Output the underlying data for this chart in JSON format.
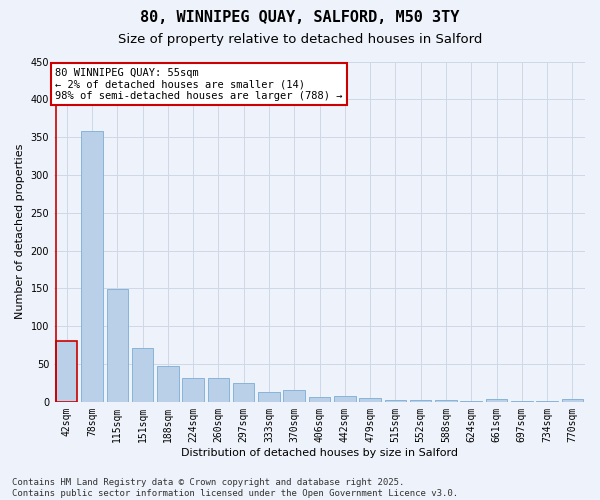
{
  "title1": "80, WINNIPEG QUAY, SALFORD, M50 3TY",
  "title2": "Size of property relative to detached houses in Salford",
  "xlabel": "Distribution of detached houses by size in Salford",
  "ylabel": "Number of detached properties",
  "categories": [
    "42sqm",
    "78sqm",
    "115sqm",
    "151sqm",
    "188sqm",
    "224sqm",
    "260sqm",
    "297sqm",
    "333sqm",
    "370sqm",
    "406sqm",
    "442sqm",
    "479sqm",
    "515sqm",
    "552sqm",
    "588sqm",
    "624sqm",
    "661sqm",
    "697sqm",
    "734sqm",
    "770sqm"
  ],
  "values": [
    80,
    358,
    149,
    71,
    48,
    32,
    32,
    25,
    13,
    16,
    7,
    8,
    5,
    2,
    2,
    2,
    1,
    4,
    1,
    1,
    4
  ],
  "bar_color": "#bad0e8",
  "bar_edge_color": "#7aadd4",
  "highlight_color": "#cc0000",
  "annotation_text": "80 WINNIPEG QUAY: 55sqm\n← 2% of detached houses are smaller (14)\n98% of semi-detached houses are larger (788) →",
  "annotation_box_color": "#ffffff",
  "annotation_box_edge_color": "#cc0000",
  "ylim": [
    0,
    450
  ],
  "yticks": [
    0,
    50,
    100,
    150,
    200,
    250,
    300,
    350,
    400,
    450
  ],
  "grid_color": "#d0d8e8",
  "background_color": "#eef2fa",
  "footer_line1": "Contains HM Land Registry data © Crown copyright and database right 2025.",
  "footer_line2": "Contains public sector information licensed under the Open Government Licence v3.0.",
  "title1_fontsize": 11,
  "title2_fontsize": 9.5,
  "axis_label_fontsize": 8,
  "tick_fontsize": 7,
  "annotation_fontsize": 7.5,
  "footer_fontsize": 6.5
}
